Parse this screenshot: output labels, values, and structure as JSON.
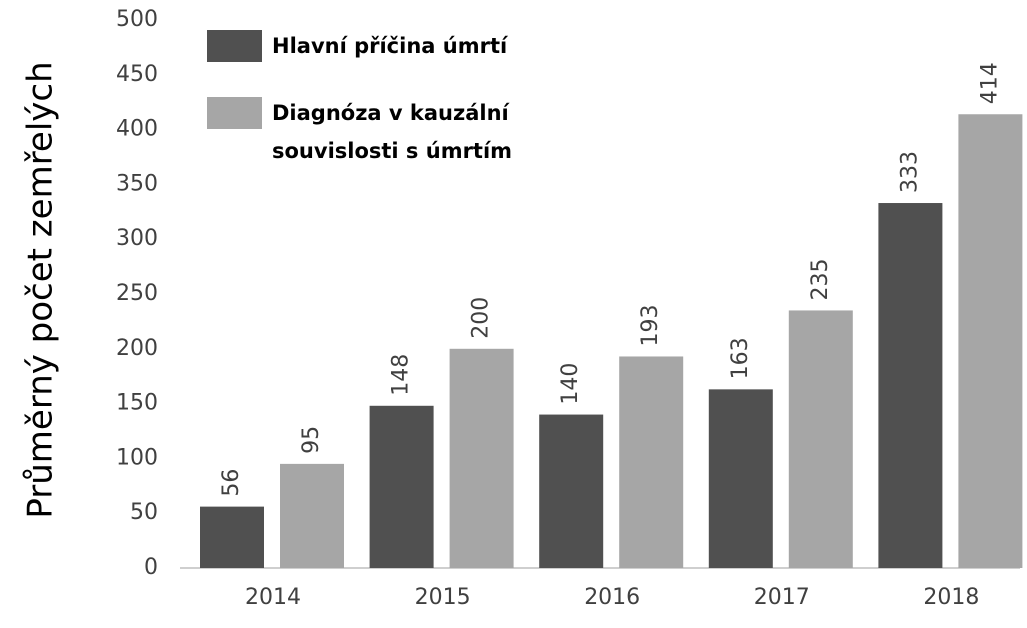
{
  "chart_data": {
    "type": "bar",
    "y_label": "Průměrný počet zemřelých",
    "categories": [
      "2014",
      "2015",
      "2016",
      "2017",
      "2018"
    ],
    "series": [
      {
        "name": "Hlavní příčina úmrtí",
        "color": "#505050",
        "values": [
          56,
          148,
          140,
          163,
          333
        ]
      },
      {
        "name": "Diagnóza v kauzální souvislosti s úmrtím",
        "color": "#a6a6a6",
        "values": [
          95,
          200,
          193,
          235,
          414
        ]
      }
    ],
    "ylim": [
      0,
      500
    ],
    "yticks": [
      0,
      50,
      100,
      150,
      200,
      250,
      300,
      350,
      400,
      450,
      500
    ],
    "grid": false,
    "legend": "top-left"
  }
}
